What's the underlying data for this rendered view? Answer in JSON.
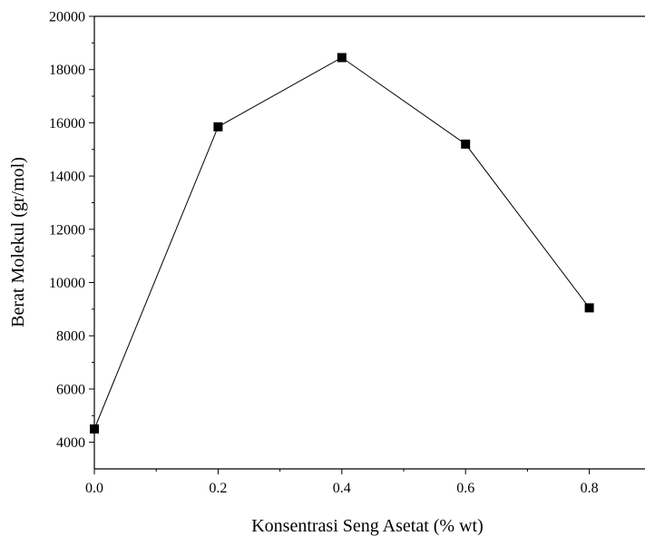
{
  "chart_data": {
    "type": "line",
    "title": "",
    "xlabel": "Konsentrasi Seng Asetat (% wt)",
    "ylabel": "Berat Molekul (gr/mol)",
    "xlim": [
      0.0,
      0.89
    ],
    "ylim": [
      3000,
      20000
    ],
    "x_ticks": [
      0.0,
      0.2,
      0.4,
      0.6,
      0.8
    ],
    "x_tick_labels": [
      "0.0",
      "0.2",
      "0.4",
      "0.6",
      "0.8"
    ],
    "y_ticks": [
      4000,
      6000,
      8000,
      10000,
      12000,
      14000,
      16000,
      18000,
      20000
    ],
    "y_tick_labels": [
      "4000",
      "6000",
      "8000",
      "10000",
      "12000",
      "14000",
      "16000",
      "18000",
      "20000"
    ],
    "grid": false,
    "marker": "square",
    "color": "#000000",
    "x": [
      0.0,
      0.2,
      0.4,
      0.6,
      0.8
    ],
    "y": [
      4500,
      15850,
      18450,
      15200,
      9050
    ]
  }
}
